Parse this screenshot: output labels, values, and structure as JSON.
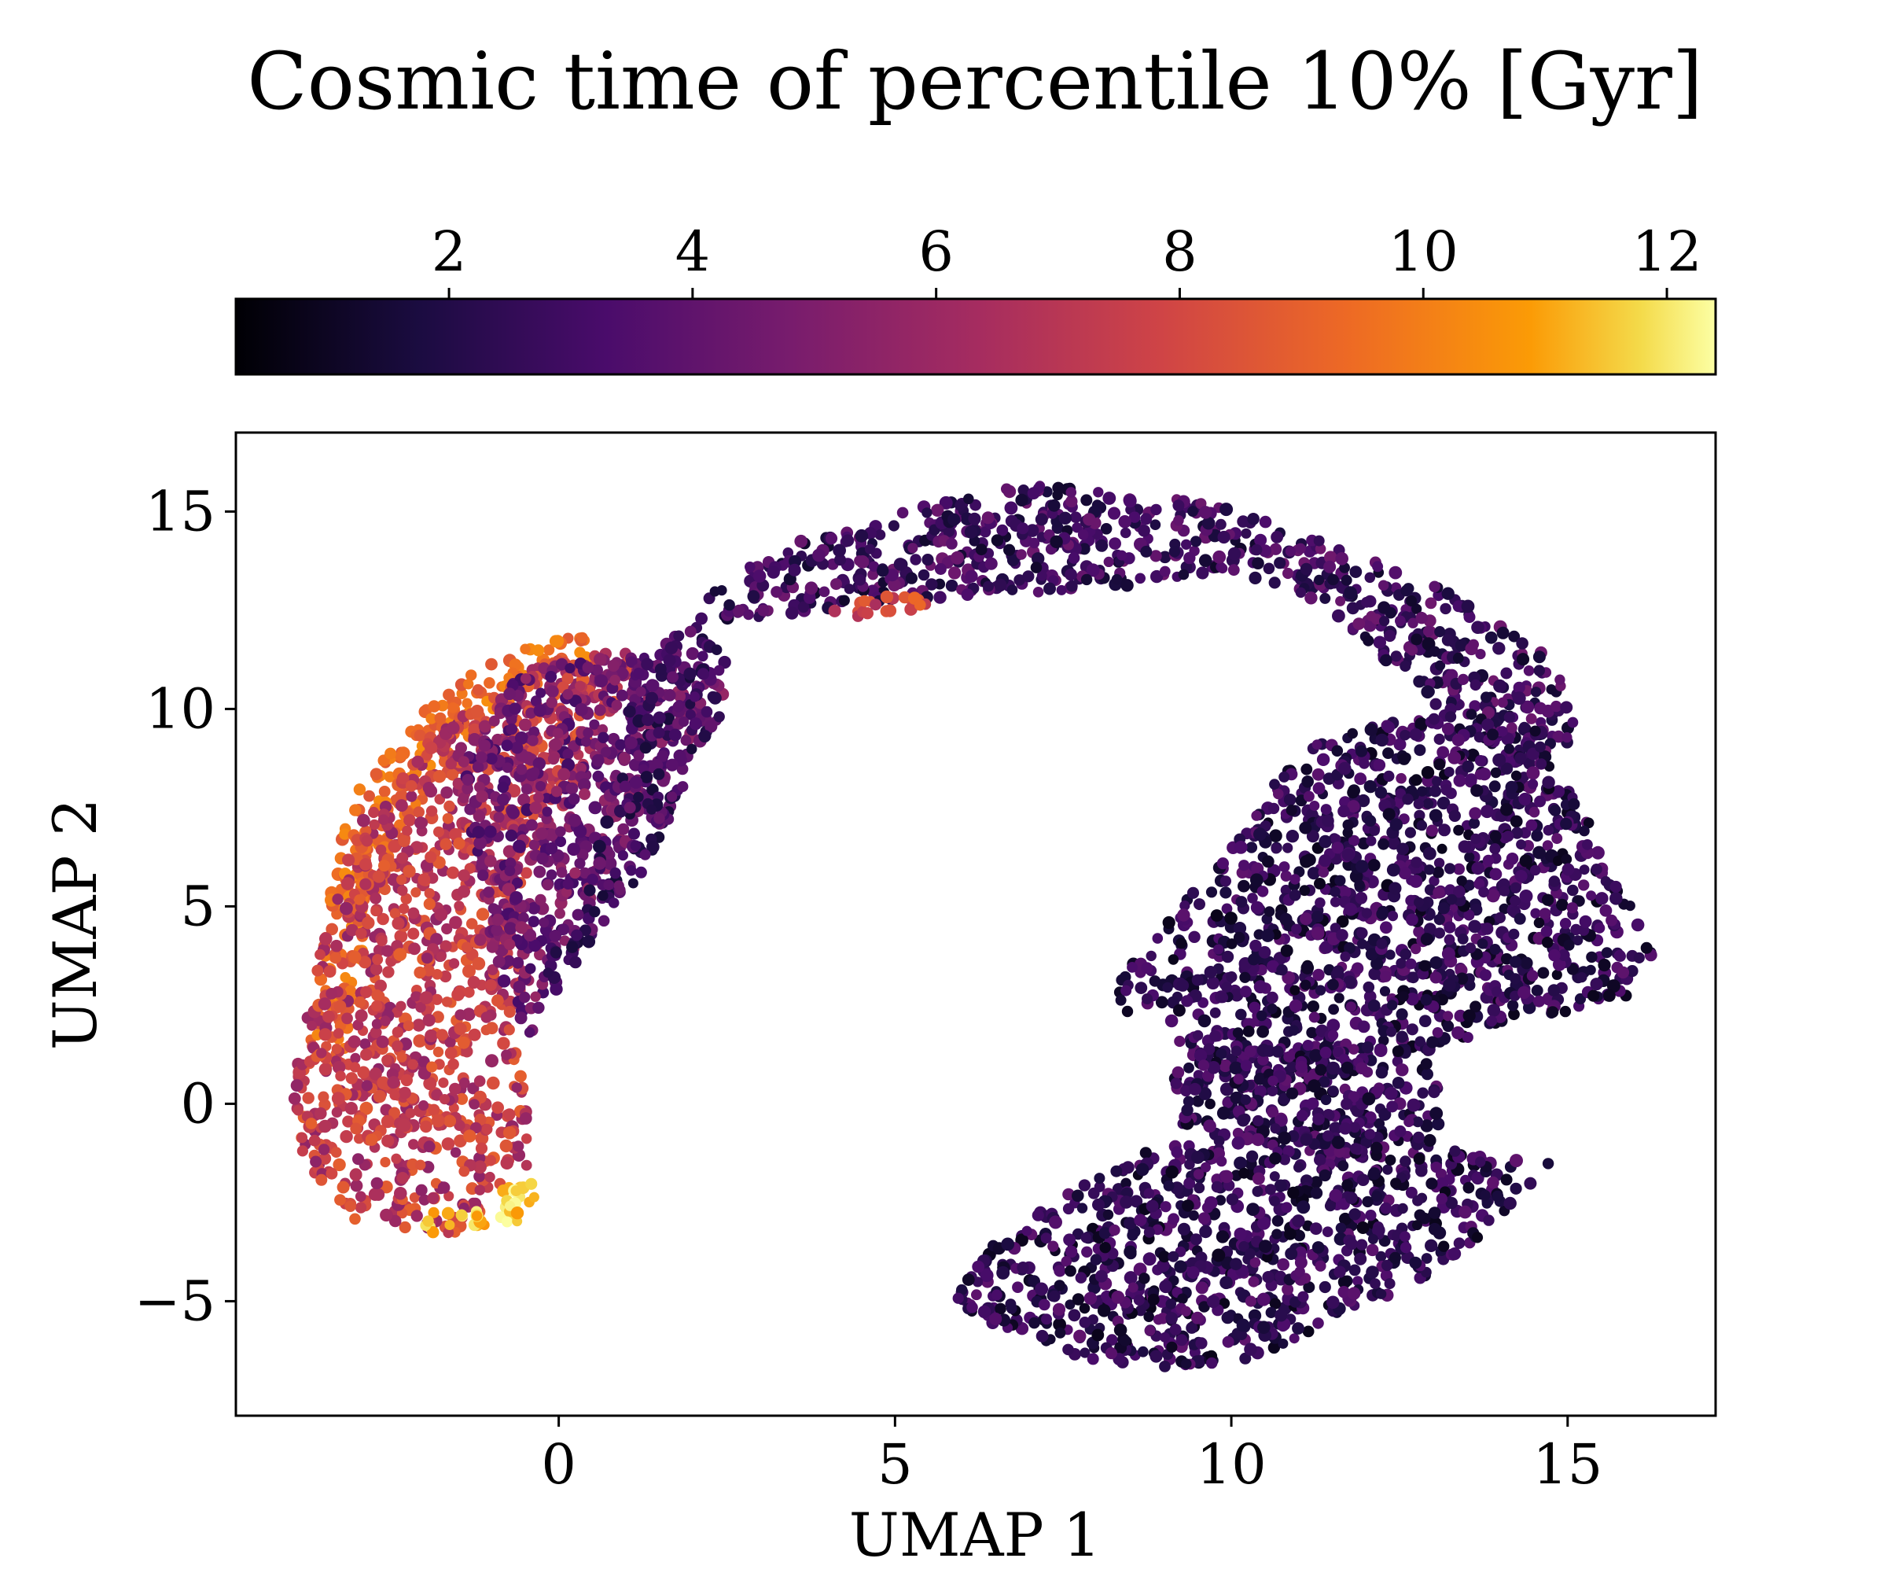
{
  "chart_data": {
    "type": "scatter",
    "title": "Cosmic time of percentile 10% [Gyr]",
    "xlabel": "UMAP 1",
    "ylabel": "UMAP 2",
    "xlim": [
      -4.8,
      17.2
    ],
    "ylim": [
      -7.9,
      17.0
    ],
    "x_ticks": [
      0,
      5,
      10,
      15
    ],
    "x_tick_labels": [
      "0",
      "5",
      "10",
      "15"
    ],
    "y_ticks": [
      -5,
      0,
      5,
      10,
      15
    ],
    "y_tick_labels": [
      "−5",
      "0",
      "5",
      "10",
      "15"
    ],
    "grid": false,
    "colorbar": {
      "label": "Cosmic time of percentile 10% [Gyr]",
      "orientation": "horizontal",
      "position": "top",
      "colormap": "inferno",
      "range": [
        0.25,
        12.4
      ],
      "ticks": [
        2,
        4,
        6,
        8,
        10,
        12
      ],
      "tick_labels": [
        "2",
        "4",
        "6",
        "8",
        "10",
        "12"
      ]
    },
    "regions": [
      {
        "name": "left-arc-outer-edge",
        "value_range": [
          8.5,
          10.5
        ],
        "polygon": [
          [
            -3.5,
            4.0
          ],
          [
            -3.2,
            7.5
          ],
          [
            -2.0,
            10.0
          ],
          [
            -0.8,
            11.5
          ],
          [
            0.3,
            12.0
          ],
          [
            0.8,
            11.5
          ],
          [
            -0.5,
            10.5
          ],
          [
            -1.8,
            8.5
          ],
          [
            -2.8,
            5.0
          ],
          [
            -3.2,
            1.0
          ],
          [
            -3.8,
            1.0
          ]
        ]
      },
      {
        "name": "left-arc-body",
        "value_range": [
          5.5,
          9.0
        ],
        "polygon": [
          [
            -4.0,
            0.0
          ],
          [
            -3.6,
            3.5
          ],
          [
            -3.0,
            7.0
          ],
          [
            -1.8,
            9.5
          ],
          [
            -0.3,
            11.2
          ],
          [
            1.2,
            11.5
          ],
          [
            0.5,
            9.0
          ],
          [
            -0.5,
            5.5
          ],
          [
            -0.6,
            1.5
          ],
          [
            -0.4,
            -1.5
          ],
          [
            -1.5,
            -3.3
          ],
          [
            -3.0,
            -3.0
          ],
          [
            -3.8,
            -1.5
          ]
        ]
      },
      {
        "name": "left-arc-inner-bridge",
        "value_range": [
          3.0,
          6.0
        ],
        "polygon": [
          [
            -1.5,
            9.0
          ],
          [
            -0.5,
            11.0
          ],
          [
            1.5,
            11.5
          ],
          [
            2.5,
            10.5
          ],
          [
            1.5,
            8.0
          ],
          [
            0.8,
            6.0
          ],
          [
            0.0,
            3.0
          ],
          [
            -0.5,
            1.5
          ],
          [
            -1.0,
            4.0
          ],
          [
            -1.3,
            7.0
          ]
        ]
      },
      {
        "name": "left-arc-bottom-tip",
        "value_range": [
          10.5,
          12.4
        ],
        "polygon": [
          [
            -2.5,
            -3.0
          ],
          [
            -2.0,
            -3.3
          ],
          [
            -1.3,
            -3.3
          ],
          [
            -0.6,
            -3.0
          ],
          [
            -0.3,
            -2.2
          ],
          [
            -0.5,
            -1.7
          ],
          [
            -1.2,
            -2.5
          ],
          [
            -2.0,
            -2.8
          ]
        ]
      },
      {
        "name": "bridge-column",
        "value_range": [
          1.5,
          4.5
        ],
        "polygon": [
          [
            1.0,
            11.0
          ],
          [
            2.3,
            12.5
          ],
          [
            2.6,
            10.5
          ],
          [
            2.0,
            8.5
          ],
          [
            1.3,
            6.0
          ],
          [
            0.0,
            3.0
          ],
          [
            -0.3,
            3.5
          ],
          [
            0.6,
            6.5
          ],
          [
            1.0,
            9.0
          ]
        ]
      },
      {
        "name": "top-arc",
        "value_range": [
          1.2,
          4.5
        ],
        "polygon": [
          [
            2.0,
            12.5
          ],
          [
            2.8,
            13.8
          ],
          [
            4.5,
            14.8
          ],
          [
            7.0,
            15.7
          ],
          [
            9.5,
            15.3
          ],
          [
            11.5,
            14.2
          ],
          [
            13.5,
            12.8
          ],
          [
            14.8,
            11.2
          ],
          [
            15.2,
            9.2
          ],
          [
            14.3,
            8.5
          ],
          [
            13.0,
            10.0
          ],
          [
            11.5,
            12.5
          ],
          [
            10.0,
            13.5
          ],
          [
            8.0,
            13.0
          ],
          [
            5.5,
            12.8
          ],
          [
            3.8,
            12.5
          ],
          [
            2.5,
            12.2
          ]
        ]
      },
      {
        "name": "top-arc-orange-streak",
        "value_range": [
          6.5,
          9.5
        ],
        "polygon": [
          [
            3.8,
            12.4
          ],
          [
            4.5,
            12.8
          ],
          [
            5.7,
            13.0
          ],
          [
            5.5,
            12.6
          ],
          [
            4.5,
            12.3
          ]
        ]
      },
      {
        "name": "right-upper-lobe",
        "value_range": [
          0.8,
          4.0
        ],
        "polygon": [
          [
            7.5,
            1.0
          ],
          [
            8.5,
            3.5
          ],
          [
            10.0,
            6.5
          ],
          [
            11.0,
            9.0
          ],
          [
            13.0,
            10.0
          ],
          [
            14.5,
            9.5
          ],
          [
            15.2,
            7.5
          ],
          [
            15.8,
            5.5
          ],
          [
            16.3,
            3.8
          ],
          [
            15.8,
            2.5
          ],
          [
            14.0,
            2.0
          ],
          [
            12.5,
            1.0
          ],
          [
            10.8,
            0.3
          ],
          [
            9.5,
            0.5
          ],
          [
            9.0,
            2.5
          ],
          [
            8.0,
            2.2
          ]
        ]
      },
      {
        "name": "right-neck",
        "value_range": [
          1.0,
          4.0
        ],
        "polygon": [
          [
            8.9,
            0.5
          ],
          [
            9.6,
            1.5
          ],
          [
            11.5,
            1.5
          ],
          [
            13.0,
            1.0
          ],
          [
            13.2,
            -0.5
          ],
          [
            12.0,
            -1.0
          ],
          [
            10.0,
            -1.0
          ],
          [
            9.2,
            -0.5
          ]
        ]
      },
      {
        "name": "right-lower-lobe",
        "value_range": [
          0.8,
          4.0
        ],
        "polygon": [
          [
            5.9,
            -5.0
          ],
          [
            6.2,
            -3.8
          ],
          [
            7.5,
            -2.3
          ],
          [
            9.0,
            -1.0
          ],
          [
            11.0,
            -0.8
          ],
          [
            12.5,
            -0.5
          ],
          [
            13.5,
            -1.2
          ],
          [
            14.8,
            -1.5
          ],
          [
            14.0,
            -3.0
          ],
          [
            12.5,
            -4.8
          ],
          [
            10.5,
            -6.4
          ],
          [
            8.8,
            -6.8
          ],
          [
            7.5,
            -6.3
          ],
          [
            6.3,
            -5.5
          ]
        ]
      }
    ]
  }
}
